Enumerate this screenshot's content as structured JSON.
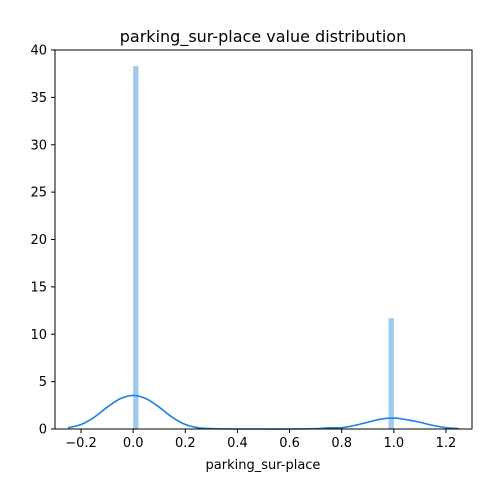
{
  "chart_data": {
    "type": "bar",
    "title": "parking_sur-place value distribution",
    "xlabel": "parking_sur-place",
    "ylabel": "",
    "xlim": [
      -0.3,
      1.3
    ],
    "ylim": [
      0,
      40
    ],
    "x_ticks": [
      -0.2,
      0.0,
      0.2,
      0.4,
      0.6,
      0.8,
      1.0,
      1.2
    ],
    "x_tick_labels": [
      "−0.2",
      "0.0",
      "0.2",
      "0.4",
      "0.6",
      "0.8",
      "1.0",
      "1.2"
    ],
    "y_ticks": [
      0,
      5,
      10,
      15,
      20,
      25,
      30,
      35,
      40
    ],
    "y_tick_labels": [
      "0",
      "5",
      "10",
      "15",
      "20",
      "25",
      "30",
      "35",
      "40"
    ],
    "grid": false,
    "histogram": {
      "bars": [
        {
          "x_start": 0.0,
          "x_end": 0.02,
          "density": 38.3
        },
        {
          "x_start": 0.98,
          "x_end": 1.0,
          "density": 11.7
        }
      ],
      "color": "#9fc8ef"
    },
    "kde": {
      "x": [
        -0.25,
        -0.2,
        -0.15,
        -0.1,
        -0.05,
        0.0,
        0.05,
        0.1,
        0.15,
        0.2,
        0.25,
        0.3,
        0.4,
        0.5,
        0.6,
        0.7,
        0.75,
        0.8,
        0.85,
        0.9,
        0.95,
        1.0,
        1.05,
        1.1,
        1.15,
        1.2,
        1.25
      ],
      "y": [
        0.13,
        0.47,
        1.23,
        2.3,
        3.19,
        3.54,
        3.19,
        2.3,
        1.23,
        0.47,
        0.13,
        0.04,
        0.0,
        0.0,
        0.0,
        0.04,
        0.13,
        0.14,
        0.38,
        0.71,
        1.04,
        1.15,
        0.98,
        0.71,
        0.38,
        0.14,
        0.04
      ],
      "color": "#1f7fe5"
    },
    "colors": {
      "axis": "#000000",
      "background": "#ffffff"
    }
  }
}
